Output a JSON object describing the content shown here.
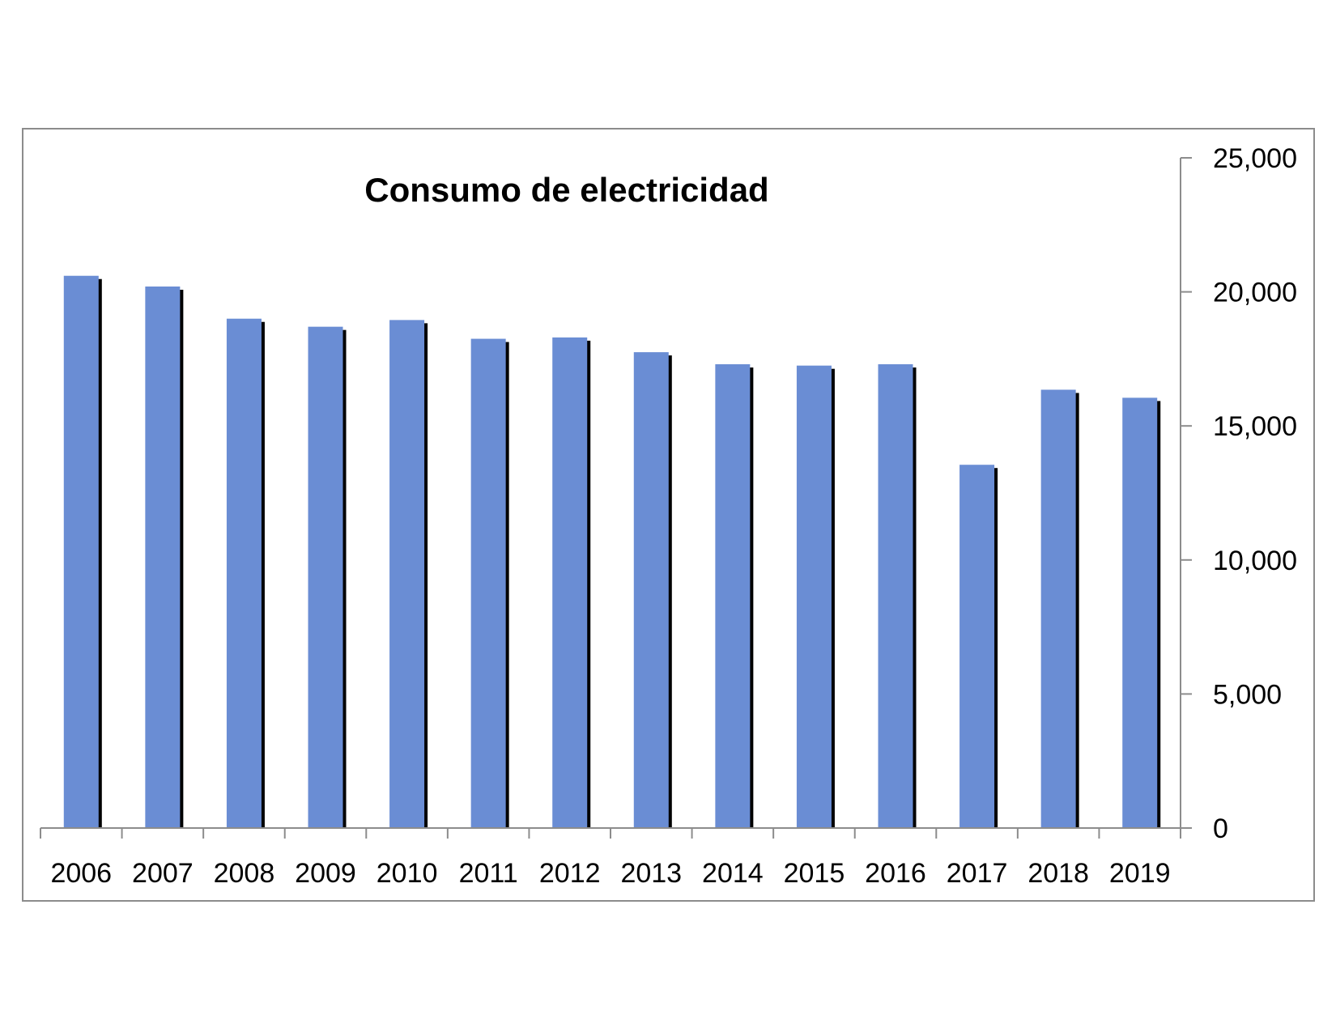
{
  "chart_data": {
    "type": "bar",
    "title": "Consumo de electricidad",
    "xlabel": "",
    "ylabel": "",
    "categories": [
      "2006",
      "2007",
      "2008",
      "2009",
      "2010",
      "2011",
      "2012",
      "2013",
      "2014",
      "2015",
      "2016",
      "2017",
      "2018",
      "2019"
    ],
    "values": [
      20600,
      20200,
      19000,
      18700,
      18950,
      18250,
      18300,
      17750,
      17300,
      17250,
      17300,
      13550,
      16350,
      16050
    ],
    "ylim": [
      0,
      25000
    ],
    "yticks": [
      0,
      5000,
      10000,
      15000,
      20000,
      25000
    ],
    "ytick_labels": [
      "0",
      "5,000",
      "10,000",
      "15,000",
      "20,000",
      "25,000"
    ],
    "y_axis_side": "right",
    "grid": false,
    "legend": "none",
    "bar_color": "#6a8dd4",
    "shadow_color": "#000000"
  }
}
